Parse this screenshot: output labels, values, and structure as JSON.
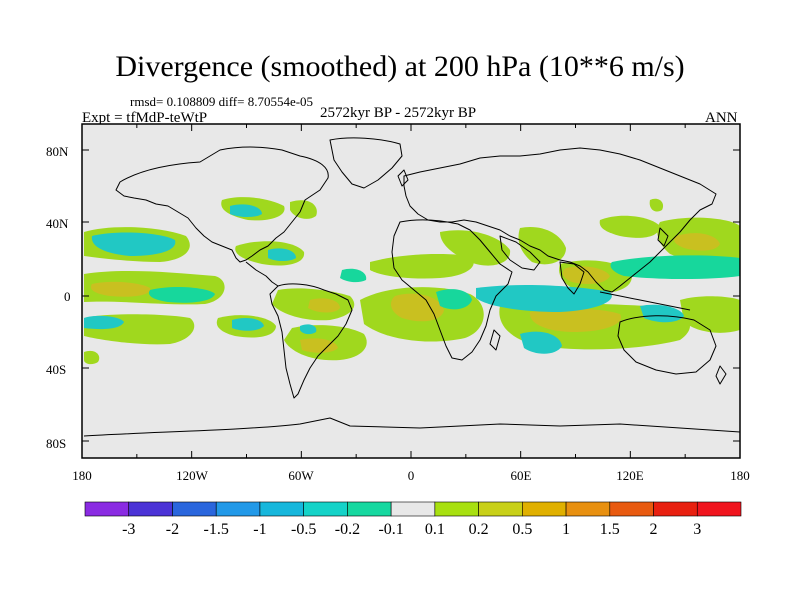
{
  "title": "Divergence (smoothed) at 200 hPa (10**6 m/s)",
  "stats": "rmsd= 0.108809  diff= 8.70554e-05",
  "experiment": "Expt = tfMdP-teWtP",
  "period": "2572kyr BP - 2572kyr BP",
  "season": "ANN",
  "lat_axis": [
    "80N",
    "40N",
    "0",
    "40S",
    "80S"
  ],
  "lon_axis": [
    "180",
    "120W",
    "60W",
    "0",
    "60E",
    "120E",
    "180"
  ],
  "colorbar": {
    "labels": [
      "-3",
      "-2",
      "-1.5",
      "-1",
      "-0.5",
      "-0.2",
      "-0.1",
      "0.1",
      "0.2",
      "0.5",
      "1",
      "1.5",
      "2",
      "3"
    ],
    "colors": [
      "#8a2be2",
      "#4b33d6",
      "#2a66dd",
      "#2299e8",
      "#17b7dc",
      "#15d3c8",
      "#16d8a0",
      "#e8e8e8",
      "#a8e010",
      "#c8d018",
      "#e0b000",
      "#e89010",
      "#e85a10",
      "#e82010",
      "#f0141e"
    ]
  },
  "map_colors": {
    "background": "#e8e8e8",
    "green": "#a0d81e",
    "yellow": "#c9c020",
    "cyan": "#21c8c4",
    "teal": "#17d79c",
    "coast": "#000000"
  }
}
